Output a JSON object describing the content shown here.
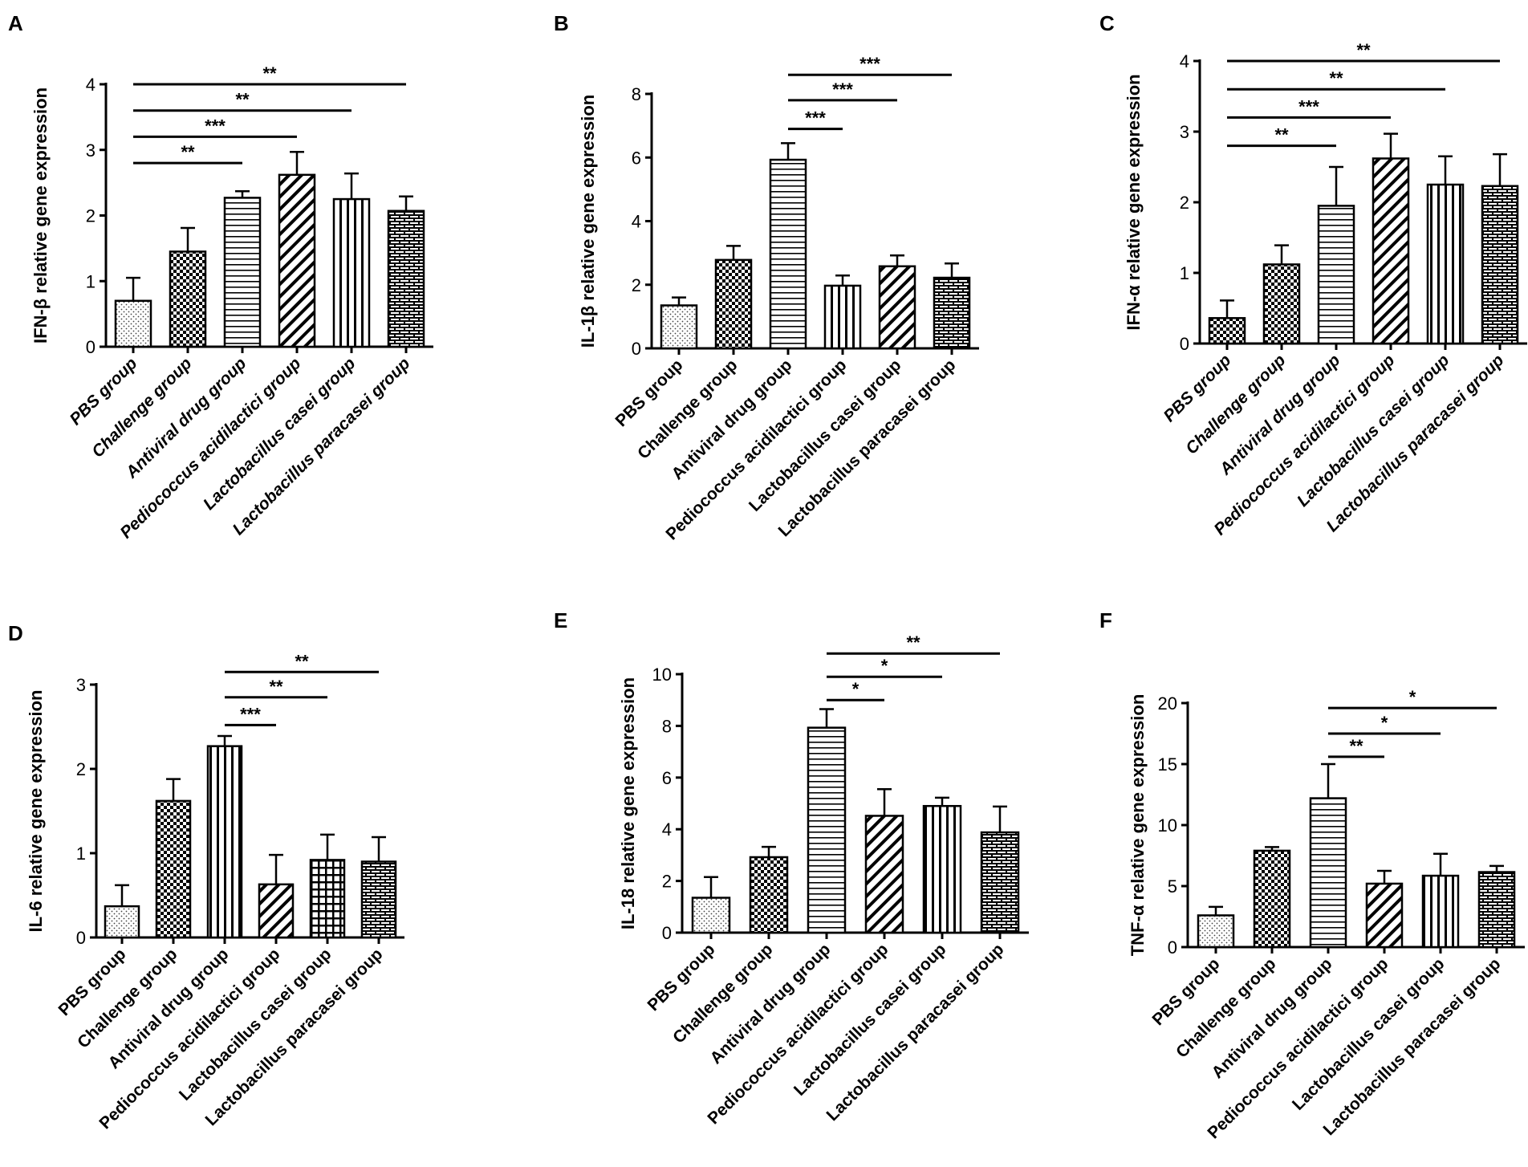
{
  "figure": {
    "background": "#ffffff",
    "bar_fill": "#ffffff",
    "stroke": "#000000"
  },
  "chart_data": [
    {
      "panel": "A",
      "type": "bar",
      "italic_labels": true,
      "ylabel": "IFN-β relative gene expression",
      "categories": [
        "PBS group",
        "Challenge group",
        "Antiviral drug group",
        "Pediococcus acidilactici group",
        "Lactobacillus casei group",
        "Lactobacillus paracasei group"
      ],
      "values": [
        0.7,
        1.45,
        2.27,
        2.62,
        2.25,
        2.07
      ],
      "errors": [
        0.35,
        0.36,
        0.1,
        0.35,
        0.39,
        0.22
      ],
      "patterns": [
        "dots",
        "checker",
        "hlines",
        "diag",
        "vlines",
        "brick"
      ],
      "ylim": [
        0,
        4
      ],
      "yticks": [
        0,
        1,
        2,
        3,
        4
      ],
      "yticklabels": [
        "0",
        "1",
        "2",
        "3",
        "4"
      ],
      "significance": [
        {
          "from": 0,
          "to": 5,
          "y": 4.0,
          "label": "**"
        },
        {
          "from": 0,
          "to": 4,
          "y": 3.6,
          "label": "**"
        },
        {
          "from": 0,
          "to": 3,
          "y": 3.2,
          "label": "***"
        },
        {
          "from": 0,
          "to": 2,
          "y": 2.8,
          "label": "**"
        }
      ]
    },
    {
      "panel": "B",
      "type": "bar",
      "italic_labels": false,
      "ylabel": "IL-1β relative gene expression",
      "categories": [
        "PBS group",
        "Challenge group",
        "Antiviral drug group",
        "Pediococcus acidilactici group",
        "Lactobacillus casei group",
        "Lactobacillus paracasei group"
      ],
      "values": [
        1.35,
        2.78,
        5.93,
        1.97,
        2.58,
        2.22
      ],
      "errors": [
        0.25,
        0.44,
        0.52,
        0.32,
        0.34,
        0.45
      ],
      "patterns": [
        "dots",
        "checker",
        "hlines",
        "vlines",
        "diag",
        "brick"
      ],
      "ylim": [
        0,
        8
      ],
      "yticks": [
        0,
        2,
        4,
        6,
        8
      ],
      "yticklabels": [
        "0",
        "2",
        "4",
        "6",
        "8"
      ],
      "significance": [
        {
          "from": 2,
          "to": 5,
          "y": 8.6,
          "label": "***"
        },
        {
          "from": 2,
          "to": 4,
          "y": 7.8,
          "label": "***"
        },
        {
          "from": 2,
          "to": 3,
          "y": 6.9,
          "label": "***"
        }
      ]
    },
    {
      "panel": "C",
      "type": "bar",
      "italic_labels": true,
      "ylabel": "IFN-α relative gene expression",
      "categories": [
        "PBS group",
        "Challenge group",
        "Antiviral drug group",
        "Pediococcus acidilactici group",
        "Lactobacillus casei group",
        "Lactobacillus paracasei group"
      ],
      "values": [
        0.36,
        1.12,
        1.95,
        2.62,
        2.25,
        2.23
      ],
      "errors": [
        0.25,
        0.27,
        0.55,
        0.35,
        0.4,
        0.45
      ],
      "patterns": [
        "checker",
        "checker",
        "hlines",
        "diag",
        "vlines",
        "brick"
      ],
      "ylim": [
        0,
        4
      ],
      "yticks": [
        0,
        1,
        2,
        3,
        4
      ],
      "yticklabels": [
        "0",
        "1",
        "2",
        "3",
        "4"
      ],
      "significance": [
        {
          "from": 0,
          "to": 5,
          "y": 4.0,
          "label": "**"
        },
        {
          "from": 0,
          "to": 4,
          "y": 3.6,
          "label": "**"
        },
        {
          "from": 0,
          "to": 3,
          "y": 3.2,
          "label": "***"
        },
        {
          "from": 0,
          "to": 2,
          "y": 2.8,
          "label": "**"
        }
      ]
    },
    {
      "panel": "D",
      "type": "bar",
      "italic_labels": false,
      "ylabel": "IL-6 relative gene expression",
      "categories": [
        "PBS group",
        "Challenge group",
        "Antiviral drug group",
        "Pediococcus acidilactici group",
        "Lactobacillus casei group",
        "Lactobacillus paracasei group"
      ],
      "values": [
        0.37,
        1.62,
        2.27,
        0.63,
        0.92,
        0.9
      ],
      "errors": [
        0.25,
        0.26,
        0.12,
        0.35,
        0.3,
        0.29
      ],
      "patterns": [
        "dots",
        "checker",
        "vlines",
        "diag",
        "grid",
        "brick"
      ],
      "ylim": [
        0,
        3
      ],
      "yticks": [
        0,
        1,
        2,
        3
      ],
      "yticklabels": [
        "0",
        "1",
        "2",
        "3"
      ],
      "significance": [
        {
          "from": 2,
          "to": 5,
          "y": 3.15,
          "label": "**"
        },
        {
          "from": 2,
          "to": 4,
          "y": 2.85,
          "label": "**"
        },
        {
          "from": 2,
          "to": 3,
          "y": 2.52,
          "label": "***"
        }
      ]
    },
    {
      "panel": "E",
      "type": "bar",
      "italic_labels": false,
      "ylabel": "IL-18 relative gene expression",
      "categories": [
        "PBS group",
        "Challenge group",
        "Antiviral drug group",
        "Pediococcus acidilactici group",
        "Lactobacillus casei group",
        "Lactobacillus paracasei group"
      ],
      "values": [
        1.35,
        2.92,
        7.93,
        4.52,
        4.9,
        3.88
      ],
      "errors": [
        0.8,
        0.4,
        0.72,
        1.03,
        0.32,
        1.0
      ],
      "patterns": [
        "dots",
        "checker",
        "hlines",
        "diag",
        "vlines",
        "brick"
      ],
      "ylim": [
        0,
        10
      ],
      "yticks": [
        0,
        2,
        4,
        6,
        8,
        10
      ],
      "yticklabels": [
        "0",
        "2",
        "4",
        "6",
        "8",
        "10"
      ],
      "significance": [
        {
          "from": 2,
          "to": 5,
          "y": 10.8,
          "label": "**"
        },
        {
          "from": 2,
          "to": 4,
          "y": 9.9,
          "label": "*"
        },
        {
          "from": 2,
          "to": 3,
          "y": 9.0,
          "label": "*"
        }
      ]
    },
    {
      "panel": "F",
      "type": "bar",
      "italic_labels": false,
      "ylabel": "TNF-α relative gene expression",
      "categories": [
        "PBS group",
        "Challenge group",
        "Antiviral drug group",
        "Pediococcus acidilactici group",
        "Lactobacillus casei group",
        "Lactobacillus paracasei group"
      ],
      "values": [
        2.6,
        7.9,
        12.2,
        5.2,
        5.85,
        6.15
      ],
      "errors": [
        0.7,
        0.3,
        2.8,
        1.05,
        1.8,
        0.5
      ],
      "patterns": [
        "dots",
        "checker",
        "hlines",
        "diag",
        "vlines",
        "brick"
      ],
      "ylim": [
        0,
        20
      ],
      "yticks": [
        0,
        5,
        10,
        15,
        20
      ],
      "yticklabels": [
        "0",
        "5",
        "10",
        "15",
        "20"
      ],
      "significance": [
        {
          "from": 2,
          "to": 5,
          "y": 19.6,
          "label": "*"
        },
        {
          "from": 2,
          "to": 4,
          "y": 17.5,
          "label": "*"
        },
        {
          "from": 2,
          "to": 3,
          "y": 15.6,
          "label": "**"
        }
      ]
    }
  ]
}
